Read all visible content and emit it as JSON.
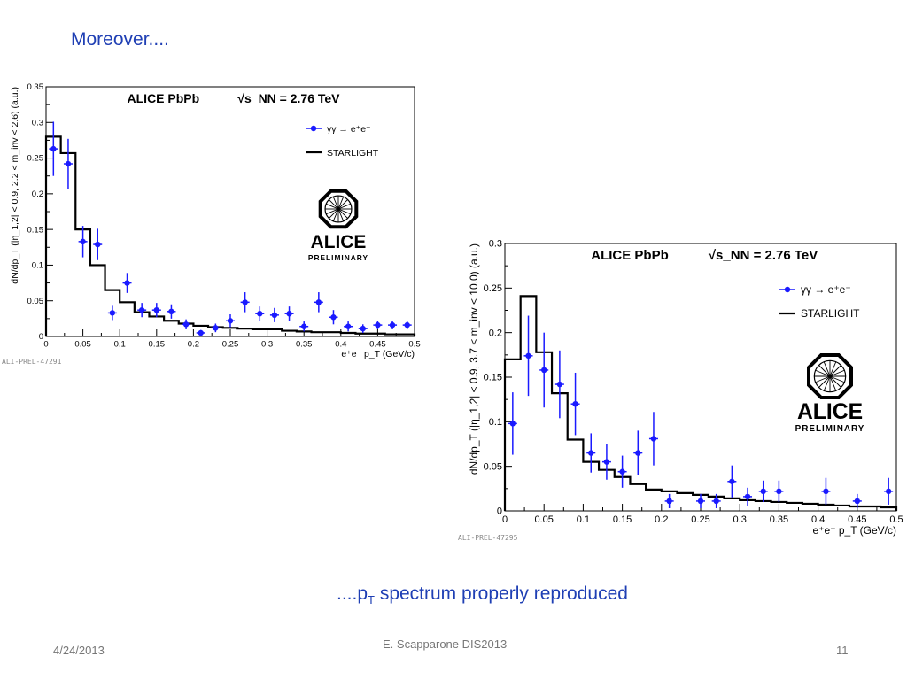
{
  "slide": {
    "title": "Moreover....",
    "caption_prefix": "....p",
    "caption_sub": "T",
    "caption_suffix": " spectrum properly reproduced",
    "footer_date": "4/24/2013",
    "footer_author": "E. Scapparone DIS2013",
    "footer_page": "11"
  },
  "chart_data": [
    {
      "type": "line",
      "title": "ALICE PbPb",
      "energy_label": "√s_NN = 2.76 TeV",
      "xlabel": "e⁺e⁻ p_T (GeV/c)",
      "ylabel": "dN/dp_T (|η_1,2| < 0.9, 2.2 < m_inv < 2.6) (a.u.)",
      "xlim": [
        0,
        0.5
      ],
      "ylim": [
        0,
        0.35
      ],
      "x_ticks": [
        0,
        0.05,
        0.1,
        0.15,
        0.2,
        0.25,
        0.3,
        0.35,
        0.4,
        0.45,
        0.5
      ],
      "y_ticks": [
        0,
        0.05,
        0.1,
        0.15,
        0.2,
        0.25,
        0.3,
        0.35
      ],
      "tick_labels_x": [
        "0",
        "0.05",
        "0.1",
        "0.15",
        "0.2",
        "0.25",
        "0.3",
        "0.35",
        "0.4",
        "0.45",
        "0.5"
      ],
      "tick_labels_y": [
        "0",
        "0.05",
        "0.1",
        "0.15",
        "0.2",
        "0.25",
        "0.3",
        "0.35"
      ],
      "legend": [
        "γγ → e⁺e⁻",
        "STARLIGHT"
      ],
      "legend_position": "top-right",
      "logo_text": "ALICE",
      "logo_subtext": "PRELIMINARY",
      "tag": "ALI-PREL-47291",
      "series": [
        {
          "name": "γγ → e⁺e⁻",
          "color": "#1a1aff",
          "x": [
            0.01,
            0.03,
            0.05,
            0.07,
            0.09,
            0.11,
            0.13,
            0.15,
            0.17,
            0.19,
            0.21,
            0.23,
            0.25,
            0.27,
            0.29,
            0.31,
            0.33,
            0.35,
            0.37,
            0.39,
            0.41,
            0.43,
            0.45,
            0.47,
            0.49
          ],
          "y": [
            0.263,
            0.242,
            0.133,
            0.129,
            0.033,
            0.075,
            0.037,
            0.037,
            0.035,
            0.017,
            0.005,
            0.012,
            0.022,
            0.048,
            0.032,
            0.03,
            0.032,
            0.014,
            0.048,
            0.027,
            0.014,
            0.011,
            0.016,
            0.016,
            0.016
          ],
          "yerr": [
            0.038,
            0.035,
            0.022,
            0.022,
            0.01,
            0.014,
            0.01,
            0.01,
            0.01,
            0.007,
            0.004,
            0.006,
            0.009,
            0.014,
            0.01,
            0.01,
            0.01,
            0.007,
            0.014,
            0.01,
            0.007,
            0.006,
            0.006,
            0.006,
            0.006
          ]
        },
        {
          "name": "STARLIGHT",
          "color": "#000000",
          "bin_edges": [
            0,
            0.02,
            0.04,
            0.06,
            0.08,
            0.1,
            0.12,
            0.14,
            0.16,
            0.18,
            0.2,
            0.22,
            0.24,
            0.26,
            0.28,
            0.3,
            0.32,
            0.34,
            0.36,
            0.38,
            0.4,
            0.42,
            0.44,
            0.46,
            0.48,
            0.5
          ],
          "values": [
            0.28,
            0.257,
            0.15,
            0.1,
            0.065,
            0.048,
            0.034,
            0.028,
            0.022,
            0.018,
            0.015,
            0.013,
            0.012,
            0.011,
            0.01,
            0.01,
            0.008,
            0.007,
            0.006,
            0.006,
            0.005,
            0.004,
            0.004,
            0.003,
            0.003
          ]
        }
      ]
    },
    {
      "type": "line",
      "title": "ALICE PbPb",
      "energy_label": "√s_NN = 2.76 TeV",
      "xlabel": "e⁺e⁻ p_T (GeV/c)",
      "ylabel": "dN/dp_T (|η_1,2| < 0.9, 3.7 < m_inv < 10.0) (a.u.)",
      "xlim": [
        0,
        0.5
      ],
      "ylim": [
        0,
        0.3
      ],
      "x_ticks": [
        0,
        0.05,
        0.1,
        0.15,
        0.2,
        0.25,
        0.3,
        0.35,
        0.4,
        0.45,
        0.5
      ],
      "y_ticks": [
        0,
        0.05,
        0.1,
        0.15,
        0.2,
        0.25,
        0.3
      ],
      "tick_labels_x": [
        "0",
        "0.05",
        "0.1",
        "0.15",
        "0.2",
        "0.25",
        "0.3",
        "0.35",
        "0.4",
        "0.45",
        "0.5"
      ],
      "tick_labels_y": [
        "0",
        "0.05",
        "0.1",
        "0.15",
        "0.2",
        "0.25",
        "0.3"
      ],
      "legend": [
        "γγ → e⁺e⁻",
        "STARLIGHT"
      ],
      "legend_position": "top-right",
      "logo_text": "ALICE",
      "logo_subtext": "PRELIMINARY",
      "tag": "ALI-PREL-47295",
      "series": [
        {
          "name": "γγ → e⁺e⁻",
          "color": "#1a1aff",
          "x": [
            0.01,
            0.03,
            0.05,
            0.07,
            0.09,
            0.11,
            0.13,
            0.15,
            0.17,
            0.19,
            0.21,
            0.25,
            0.27,
            0.29,
            0.31,
            0.33,
            0.35,
            0.41,
            0.45,
            0.49
          ],
          "y": [
            0.098,
            0.174,
            0.158,
            0.142,
            0.12,
            0.065,
            0.055,
            0.044,
            0.065,
            0.081,
            0.011,
            0.011,
            0.011,
            0.033,
            0.016,
            0.022,
            0.022,
            0.022,
            0.011,
            0.022
          ],
          "yerr": [
            0.035,
            0.045,
            0.042,
            0.038,
            0.035,
            0.022,
            0.02,
            0.018,
            0.025,
            0.03,
            0.008,
            0.008,
            0.008,
            0.018,
            0.01,
            0.012,
            0.012,
            0.015,
            0.008,
            0.015
          ]
        },
        {
          "name": "STARLIGHT",
          "color": "#000000",
          "bin_edges": [
            0,
            0.02,
            0.04,
            0.06,
            0.08,
            0.1,
            0.12,
            0.14,
            0.16,
            0.18,
            0.2,
            0.22,
            0.24,
            0.26,
            0.28,
            0.3,
            0.32,
            0.34,
            0.36,
            0.38,
            0.4,
            0.42,
            0.44,
            0.46,
            0.48,
            0.5
          ],
          "values": [
            0.17,
            0.241,
            0.178,
            0.132,
            0.08,
            0.055,
            0.046,
            0.038,
            0.03,
            0.024,
            0.022,
            0.02,
            0.018,
            0.016,
            0.014,
            0.012,
            0.011,
            0.01,
            0.009,
            0.008,
            0.007,
            0.006,
            0.005,
            0.005,
            0.004
          ]
        }
      ]
    }
  ]
}
